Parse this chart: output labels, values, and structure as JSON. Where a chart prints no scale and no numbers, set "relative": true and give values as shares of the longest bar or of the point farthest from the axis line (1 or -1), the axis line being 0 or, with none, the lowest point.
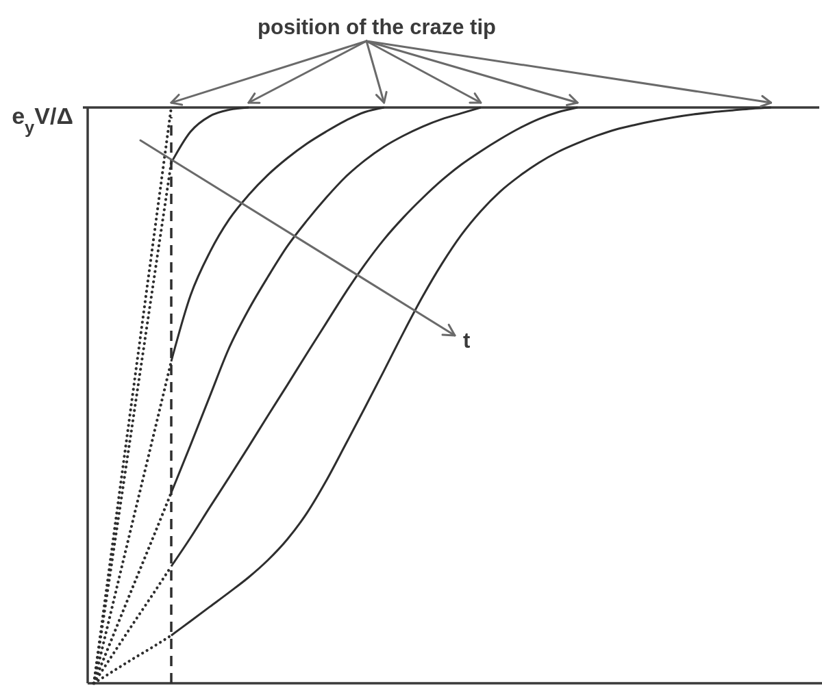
{
  "chart_data": {
    "type": "line",
    "relative": true,
    "categories": [
      null,
      null,
      null,
      null,
      null,
      null,
      null,
      null,
      null,
      null,
      null,
      null,
      null,
      null,
      null,
      null,
      null,
      null,
      null,
      null,
      null,
      null,
      null,
      null,
      null,
      null,
      null,
      null,
      null,
      null,
      null,
      null,
      null,
      null,
      null,
      null,
      null,
      null
    ],
    "series": [
      {
        "color": "#2e2e2e",
        "line_style": "dotted",
        "values": [
          0,
          0.25,
          0.5,
          0.75,
          1,
          null,
          null,
          null,
          null,
          null,
          null,
          null,
          null,
          null,
          null,
          null,
          null,
          null,
          null,
          null,
          null,
          null,
          null,
          null,
          null,
          null,
          null,
          null,
          null,
          null,
          null,
          null,
          null,
          null,
          null,
          null,
          null,
          null
        ]
      },
      {
        "color": "#2e2e2e",
        "line_style": "dotted",
        "values": [
          0,
          0.226,
          0.452,
          0.678,
          0.904,
          null,
          null,
          null,
          null,
          null,
          null,
          null,
          null,
          null,
          null,
          null,
          null,
          null,
          null,
          null,
          null,
          null,
          null,
          null,
          null,
          null,
          null,
          null,
          null,
          null,
          null,
          null,
          null,
          null,
          null,
          null,
          null,
          null
        ]
      },
      {
        "color": "#2e2e2e",
        "line_style": "dotted",
        "values": [
          0,
          0.14,
          0.28,
          0.419,
          0.559,
          null,
          null,
          null,
          null,
          null,
          null,
          null,
          null,
          null,
          null,
          null,
          null,
          null,
          null,
          null,
          null,
          null,
          null,
          null,
          null,
          null,
          null,
          null,
          null,
          null,
          null,
          null,
          null,
          null,
          null,
          null,
          null,
          null
        ]
      },
      {
        "color": "#2e2e2e",
        "line_style": "dotted",
        "values": [
          0,
          0.083,
          0.166,
          0.248,
          0.331,
          null,
          null,
          null,
          null,
          null,
          null,
          null,
          null,
          null,
          null,
          null,
          null,
          null,
          null,
          null,
          null,
          null,
          null,
          null,
          null,
          null,
          null,
          null,
          null,
          null,
          null,
          null,
          null,
          null,
          null,
          null,
          null,
          null
        ]
      },
      {
        "color": "#2e2e2e",
        "line_style": "dotted",
        "values": [
          0,
          0.051,
          0.102,
          0.152,
          0.203,
          null,
          null,
          null,
          null,
          null,
          null,
          null,
          null,
          null,
          null,
          null,
          null,
          null,
          null,
          null,
          null,
          null,
          null,
          null,
          null,
          null,
          null,
          null,
          null,
          null,
          null,
          null,
          null,
          null,
          null,
          null,
          null,
          null
        ]
      },
      {
        "color": "#2e2e2e",
        "line_style": "dotted",
        "values": [
          0,
          0.021,
          0.042,
          0.062,
          0.083,
          null,
          null,
          null,
          null,
          null,
          null,
          null,
          null,
          null,
          null,
          null,
          null,
          null,
          null,
          null,
          null,
          null,
          null,
          null,
          null,
          null,
          null,
          null,
          null,
          null,
          null,
          null,
          null,
          null,
          null,
          null,
          null,
          null
        ]
      },
      {
        "color": "#2e2e2e",
        "line_style": "solid",
        "values": [
          null,
          null,
          null,
          null,
          0.904,
          0.958,
          0.985,
          0.996,
          1,
          null,
          null,
          null,
          null,
          null,
          null,
          null,
          null,
          null,
          null,
          null,
          null,
          null,
          null,
          null,
          null,
          null,
          null,
          null,
          null,
          null,
          null,
          null,
          null,
          null,
          null,
          null,
          null,
          null
        ]
      },
      {
        "color": "#2e2e2e",
        "line_style": "solid",
        "values": [
          null,
          null,
          null,
          null,
          0.559,
          0.674,
          0.749,
          0.806,
          0.848,
          0.883,
          0.912,
          0.937,
          0.958,
          0.977,
          0.992,
          1,
          null,
          null,
          null,
          null,
          null,
          null,
          null,
          null,
          null,
          null,
          null,
          null,
          null,
          null,
          null,
          null,
          null,
          null,
          null,
          null,
          null,
          null
        ]
      },
      {
        "color": "#2e2e2e",
        "line_style": "solid",
        "values": [
          null,
          null,
          null,
          null,
          0.331,
          0.414,
          0.499,
          0.583,
          0.649,
          0.706,
          0.759,
          0.803,
          0.843,
          0.879,
          0.908,
          0.932,
          0.951,
          0.967,
          0.98,
          0.99,
          1,
          null,
          null,
          null,
          null,
          null,
          null,
          null,
          null,
          null,
          null,
          null,
          null,
          null,
          null,
          null,
          null,
          null
        ]
      },
      {
        "color": "#2e2e2e",
        "line_style": "solid",
        "values": [
          null,
          null,
          null,
          null,
          0.203,
          0.253,
          0.306,
          0.358,
          0.411,
          0.465,
          0.518,
          0.572,
          0.625,
          0.678,
          0.727,
          0.771,
          0.809,
          0.843,
          0.874,
          0.901,
          0.924,
          0.945,
          0.964,
          0.98,
          0.992,
          1,
          null,
          null,
          null,
          null,
          null,
          null,
          null,
          null,
          null,
          null,
          null,
          null
        ]
      },
      {
        "color": "#2e2e2e",
        "line_style": "solid",
        "values": [
          null,
          null,
          null,
          null,
          0.083,
          0.108,
          0.133,
          0.158,
          0.184,
          0.214,
          0.25,
          0.295,
          0.351,
          0.414,
          0.478,
          0.543,
          0.609,
          0.672,
          0.729,
          0.779,
          0.82,
          0.854,
          0.881,
          0.904,
          0.923,
          0.938,
          0.951,
          0.962,
          0.97,
          0.977,
          0.983,
          0.988,
          0.992,
          0.995,
          0.998,
          1,
          null,
          null
        ]
      }
    ],
    "ref_lines": [
      {
        "axis": "y",
        "value": 1,
        "label": "e$_{y}$V/Δ",
        "color": "#3a3a3a"
      }
    ],
    "annotations": [
      "position of the craze tip",
      "t"
    ]
  }
}
